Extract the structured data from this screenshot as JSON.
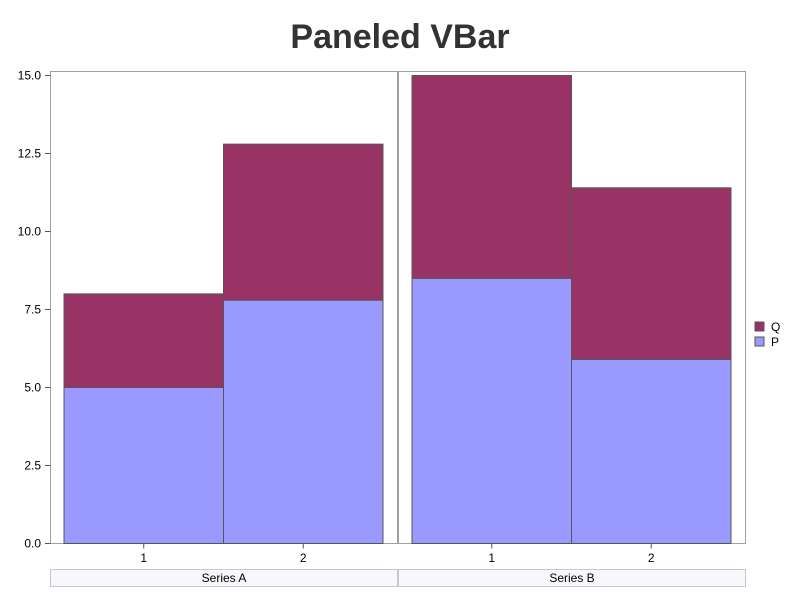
{
  "chart_data": {
    "type": "bar",
    "stacked": true,
    "title": "Paneled VBar",
    "xlabel": "",
    "ylabel": "",
    "ylim": [
      0,
      15
    ],
    "yticks": [
      "0.0",
      "2.5",
      "5.0",
      "7.5",
      "10.0",
      "12.5",
      "15.0"
    ],
    "categories": [
      "1",
      "2"
    ],
    "grid": false,
    "legend_position": "right",
    "panels": [
      {
        "name": "Series A",
        "series": [
          {
            "name": "P",
            "values": [
              5.0,
              7.8
            ]
          },
          {
            "name": "Q",
            "values": [
              3.0,
              5.0
            ]
          }
        ]
      },
      {
        "name": "Series B",
        "series": [
          {
            "name": "P",
            "values": [
              8.5,
              5.9
            ]
          },
          {
            "name": "Q",
            "values": [
              6.5,
              5.5
            ]
          }
        ]
      }
    ],
    "legend": [
      {
        "name": "Q",
        "color": "#993366"
      },
      {
        "name": "P",
        "color": "#9999ff"
      }
    ],
    "colors": {
      "P": "#9999ff",
      "Q": "#993366"
    }
  }
}
